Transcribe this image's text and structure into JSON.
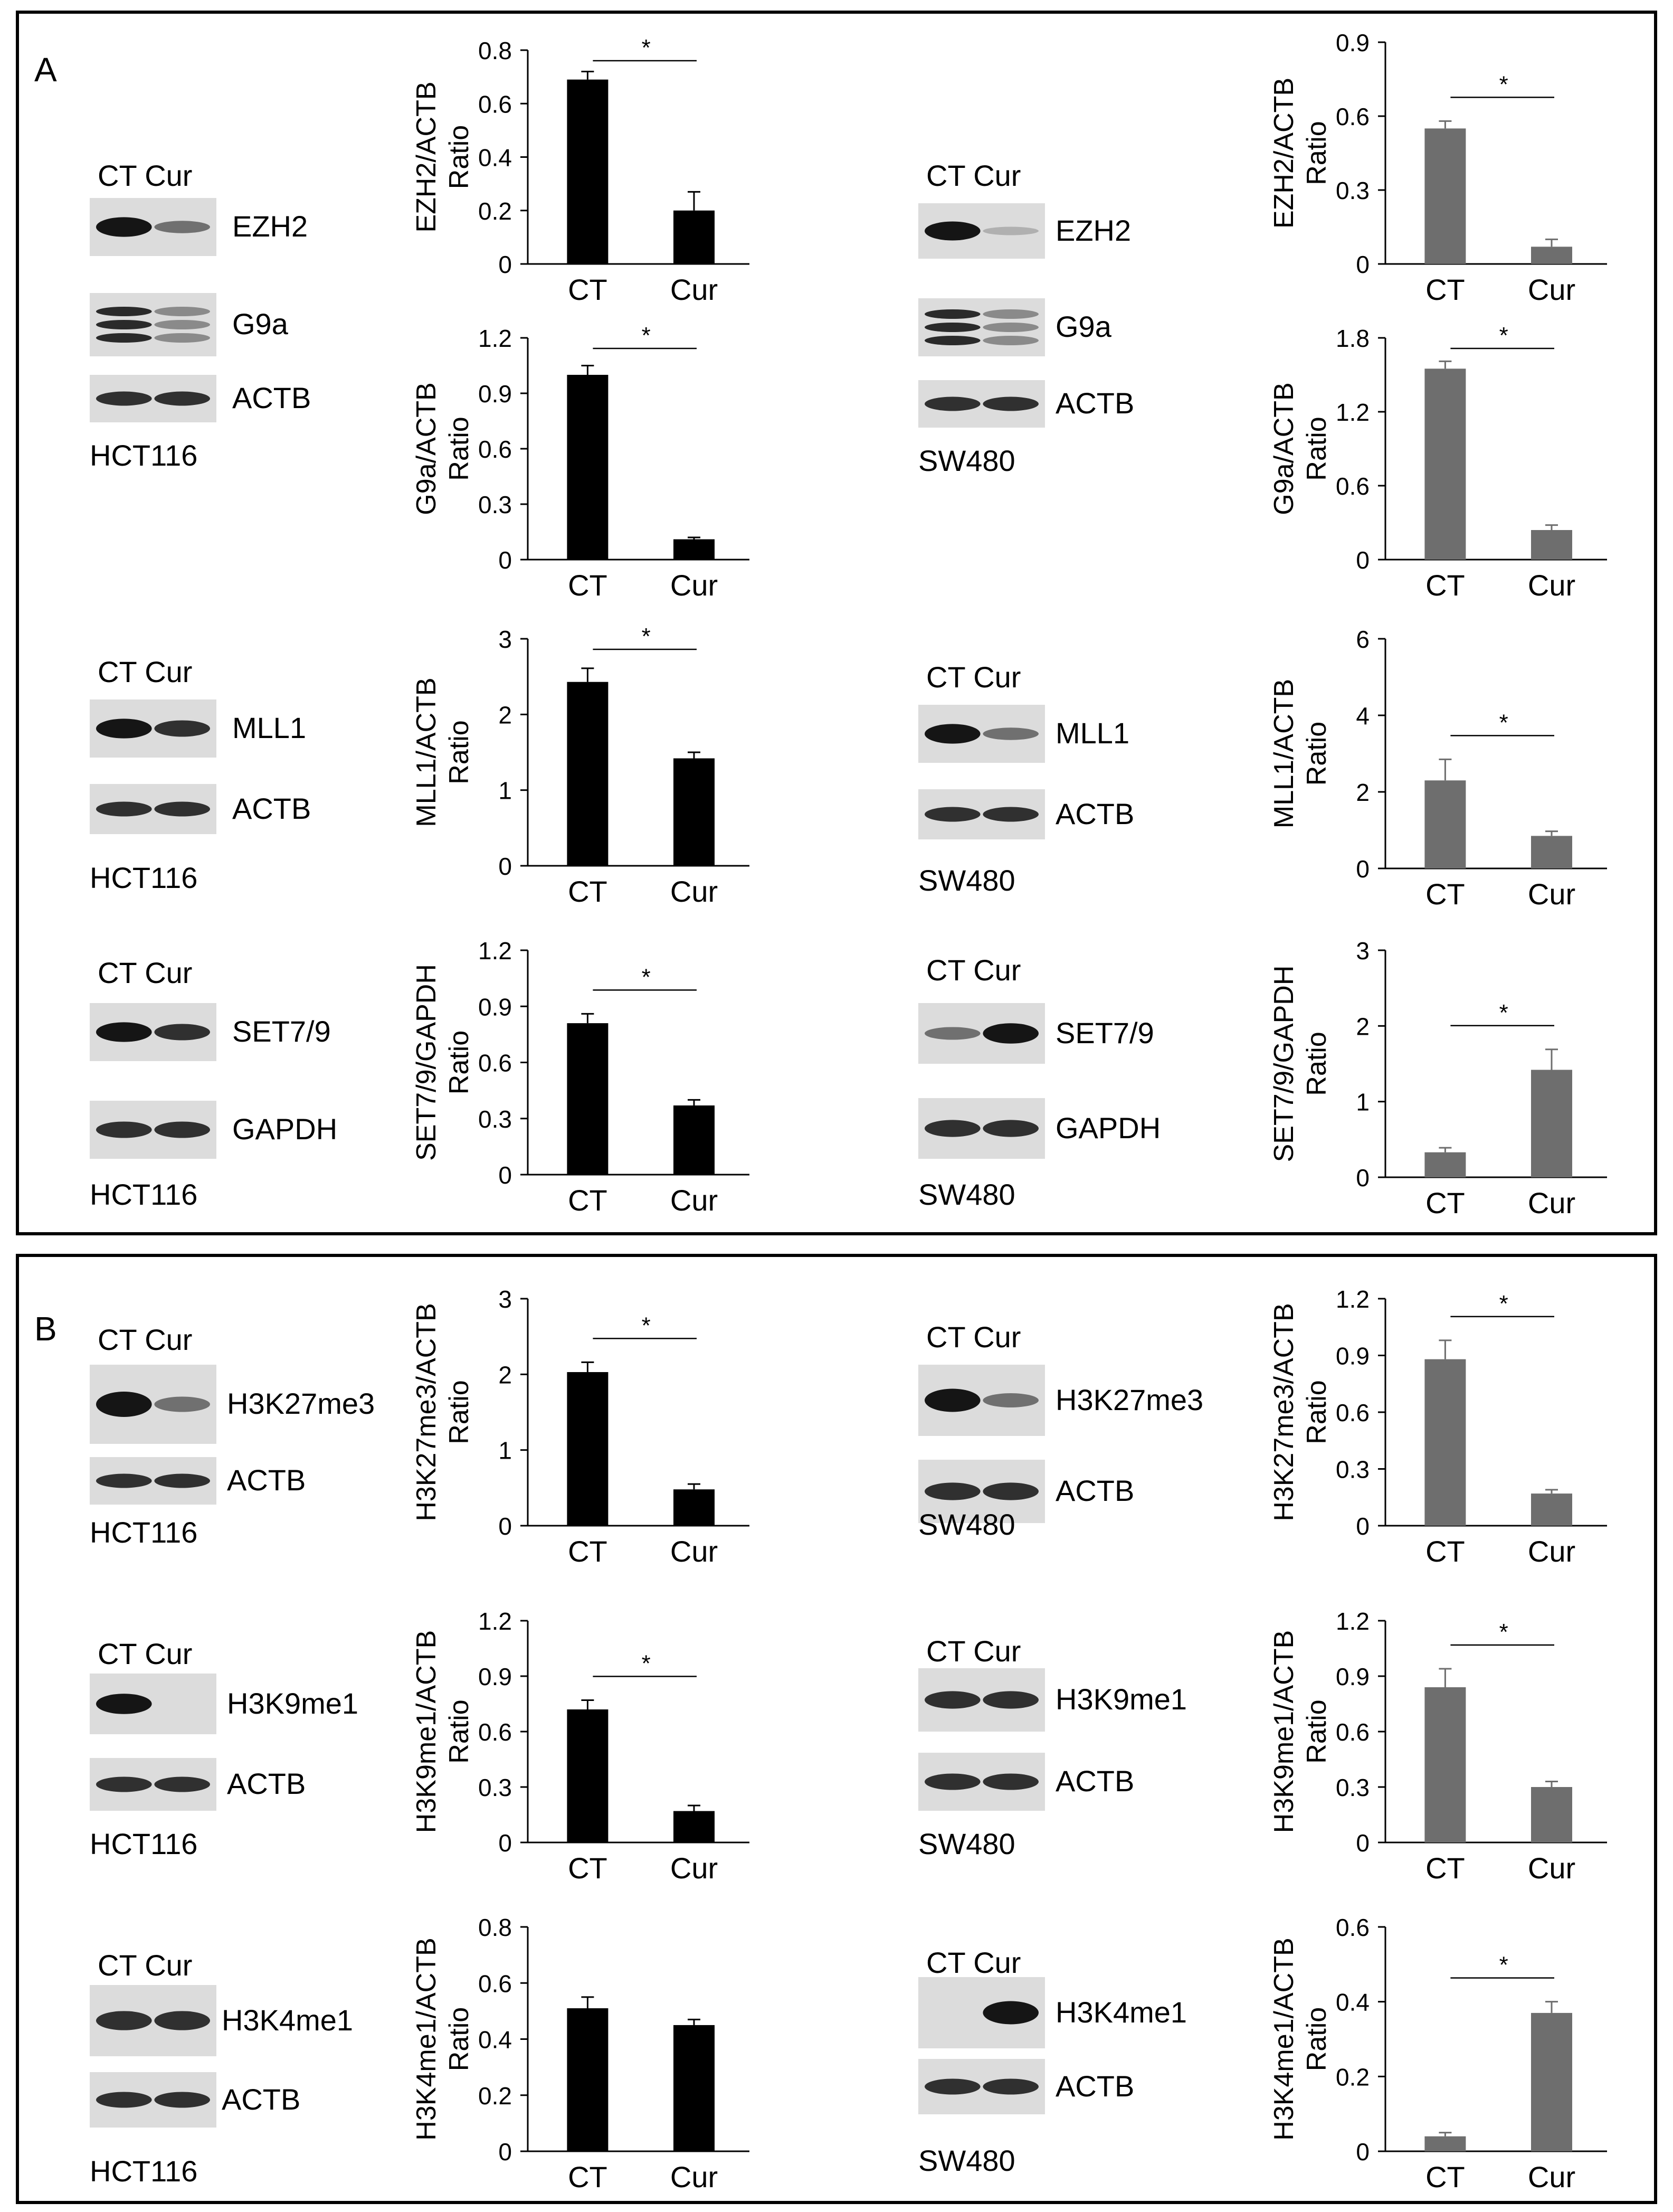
{
  "panels": [
    {
      "letter": "A"
    },
    {
      "letter": "B"
    }
  ],
  "lane_labels": "CT Cur",
  "blots": [
    {
      "id": "a1-hct",
      "cell_line": "HCT116",
      "proteins": [
        "EZH2",
        "G9a",
        "ACTB"
      ]
    },
    {
      "id": "a1-sw",
      "cell_line": "SW480",
      "proteins": [
        "EZH2",
        "G9a",
        "ACTB"
      ]
    },
    {
      "id": "a2-hct",
      "cell_line": "HCT116",
      "proteins": [
        "MLL1",
        "ACTB"
      ]
    },
    {
      "id": "a2-sw",
      "cell_line": "SW480",
      "proteins": [
        "MLL1",
        "ACTB"
      ]
    },
    {
      "id": "a3-hct",
      "cell_line": "HCT116",
      "proteins": [
        "SET7/9",
        "GAPDH"
      ]
    },
    {
      "id": "a3-sw",
      "cell_line": "SW480",
      "proteins": [
        "SET7/9",
        "GAPDH"
      ]
    },
    {
      "id": "b1-hct",
      "cell_line": "HCT116",
      "proteins": [
        "H3K27me3",
        "ACTB"
      ]
    },
    {
      "id": "b1-sw",
      "cell_line": "SW480",
      "proteins": [
        "H3K27me3",
        "ACTB"
      ]
    },
    {
      "id": "b2-hct",
      "cell_line": "HCT116",
      "proteins": [
        "H3K9me1",
        "ACTB"
      ]
    },
    {
      "id": "b2-sw",
      "cell_line": "SW480",
      "proteins": [
        "H3K9me1",
        "ACTB"
      ]
    },
    {
      "id": "b3-hct",
      "cell_line": "HCT116",
      "proteins": [
        "H3K4me1",
        "ACTB"
      ]
    },
    {
      "id": "b3-sw",
      "cell_line": "SW480",
      "proteins": [
        "H3K4me1",
        "ACTB"
      ]
    }
  ],
  "chart_data": [
    {
      "id": "ezh2-hct",
      "type": "bar",
      "categories": [
        "CT",
        "Cur"
      ],
      "values": [
        0.69,
        0.2
      ],
      "errors": [
        0.03,
        0.07
      ],
      "ylabel": "EZH2/ACTB\nRatio",
      "ylim": [
        0,
        0.8
      ],
      "yticks": [
        "0",
        "0.2",
        "0.4",
        "0.6",
        "0.8"
      ],
      "significant": true,
      "significance_label": "*",
      "bar_color": "#000000"
    },
    {
      "id": "ezh2-sw",
      "type": "bar",
      "categories": [
        "CT",
        "Cur"
      ],
      "values": [
        0.55,
        0.07
      ],
      "errors": [
        0.03,
        0.03
      ],
      "ylabel": "EZH2/ACTB\nRatio",
      "ylim": [
        0,
        0.9
      ],
      "yticks": [
        "0",
        "0.3",
        "0.6",
        "0.9"
      ],
      "significant": true,
      "significance_label": "*",
      "bar_color": "#6e6e6e"
    },
    {
      "id": "g9a-hct",
      "type": "bar",
      "categories": [
        "CT",
        "Cur"
      ],
      "values": [
        1.0,
        0.11
      ],
      "errors": [
        0.05,
        0.01
      ],
      "ylabel": "G9a/ACTB\nRatio",
      "ylim": [
        0,
        1.2
      ],
      "yticks": [
        "0",
        "0.3",
        "0.6",
        "0.9",
        "1.2"
      ],
      "significant": true,
      "significance_label": "*",
      "bar_color": "#000000"
    },
    {
      "id": "g9a-sw",
      "type": "bar",
      "categories": [
        "CT",
        "Cur"
      ],
      "values": [
        1.55,
        0.24
      ],
      "errors": [
        0.06,
        0.04
      ],
      "ylabel": "G9a/ACTB\nRatio",
      "ylim": [
        0,
        1.8
      ],
      "yticks": [
        "0",
        "0.6",
        "1.2",
        "1.8"
      ],
      "significant": true,
      "significance_label": "*",
      "bar_color": "#6e6e6e"
    },
    {
      "id": "mll1-hct",
      "type": "bar",
      "categories": [
        "CT",
        "Cur"
      ],
      "values": [
        2.43,
        1.42
      ],
      "errors": [
        0.18,
        0.08
      ],
      "ylabel": "MLL1/ACTB\nRatio",
      "ylim": [
        0,
        3
      ],
      "yticks": [
        "0",
        "1",
        "2",
        "3"
      ],
      "significant": true,
      "significance_label": "*",
      "bar_color": "#000000"
    },
    {
      "id": "mll1-sw",
      "type": "bar",
      "categories": [
        "CT",
        "Cur"
      ],
      "values": [
        2.3,
        0.85
      ],
      "errors": [
        0.55,
        0.12
      ],
      "ylabel": "MLL1/ACTB\nRatio",
      "ylim": [
        0,
        6
      ],
      "yticks": [
        "0",
        "2",
        "4",
        "6"
      ],
      "significant": true,
      "significance_label": "*",
      "bar_color": "#6e6e6e"
    },
    {
      "id": "set79-hct",
      "type": "bar",
      "categories": [
        "CT",
        "Cur"
      ],
      "values": [
        0.81,
        0.37
      ],
      "errors": [
        0.05,
        0.03
      ],
      "ylabel": "SET7/9/GAPDH\nRatio",
      "ylim": [
        0,
        1.2
      ],
      "yticks": [
        "0",
        "0.3",
        "0.6",
        "0.9",
        "1.2"
      ],
      "significant": true,
      "significance_label": "*",
      "bar_color": "#000000"
    },
    {
      "id": "set79-sw",
      "type": "bar",
      "categories": [
        "CT",
        "Cur"
      ],
      "values": [
        0.33,
        1.42
      ],
      "errors": [
        0.06,
        0.27
      ],
      "ylabel": "SET7/9/GAPDH\nRatio",
      "ylim": [
        0,
        3
      ],
      "yticks": [
        "0",
        "1",
        "2",
        "3"
      ],
      "significant": true,
      "significance_label": "*",
      "bar_color": "#6e6e6e"
    },
    {
      "id": "h3k27-hct",
      "type": "bar",
      "categories": [
        "CT",
        "Cur"
      ],
      "values": [
        2.03,
        0.48
      ],
      "errors": [
        0.13,
        0.07
      ],
      "ylabel": "H3K27me3/ACTB\nRatio",
      "ylim": [
        0,
        3
      ],
      "yticks": [
        "0",
        "1",
        "2",
        "3"
      ],
      "significant": true,
      "significance_label": "*",
      "bar_color": "#000000"
    },
    {
      "id": "h3k27-sw",
      "type": "bar",
      "categories": [
        "CT",
        "Cur"
      ],
      "values": [
        0.88,
        0.17
      ],
      "errors": [
        0.1,
        0.02
      ],
      "ylabel": "H3K27me3/ACTB\nRatio",
      "ylim": [
        0,
        1.2
      ],
      "yticks": [
        "0",
        "0.3",
        "0.6",
        "0.9",
        "1.2"
      ],
      "significant": true,
      "significance_label": "*",
      "bar_color": "#6e6e6e"
    },
    {
      "id": "h3k9-hct",
      "type": "bar",
      "categories": [
        "CT",
        "Cur"
      ],
      "values": [
        0.72,
        0.17
      ],
      "errors": [
        0.05,
        0.03
      ],
      "ylabel": "H3K9me1/ACTB\nRatio",
      "ylim": [
        0,
        1.2
      ],
      "yticks": [
        "0",
        "0.3",
        "0.6",
        "0.9",
        "1.2"
      ],
      "significant": true,
      "significance_label": "*",
      "bar_color": "#000000"
    },
    {
      "id": "h3k9-sw",
      "type": "bar",
      "categories": [
        "CT",
        "Cur"
      ],
      "values": [
        0.84,
        0.3
      ],
      "errors": [
        0.1,
        0.03
      ],
      "ylabel": "H3K9me1/ACTB\nRatio",
      "ylim": [
        0,
        1.2
      ],
      "yticks": [
        "0",
        "0.3",
        "0.6",
        "0.9",
        "1.2"
      ],
      "significant": true,
      "significance_label": "*",
      "bar_color": "#6e6e6e"
    },
    {
      "id": "h3k4-hct",
      "type": "bar",
      "categories": [
        "CT",
        "Cur"
      ],
      "values": [
        0.51,
        0.45
      ],
      "errors": [
        0.04,
        0.02
      ],
      "ylabel": "H3K4me1/ACTB\nRatio",
      "ylim": [
        0,
        0.8
      ],
      "yticks": [
        "0",
        "0.2",
        "0.4",
        "0.6",
        "0.8"
      ],
      "significant": false,
      "significance_label": "",
      "bar_color": "#000000"
    },
    {
      "id": "h3k4-sw",
      "type": "bar",
      "categories": [
        "CT",
        "Cur"
      ],
      "values": [
        0.04,
        0.37
      ],
      "errors": [
        0.01,
        0.03
      ],
      "ylabel": "H3K4me1/ACTB\nRatio",
      "ylim": [
        0,
        0.6
      ],
      "yticks": [
        "0",
        "0.2",
        "0.4",
        "0.6"
      ],
      "significant": true,
      "significance_label": "*",
      "bar_color": "#6e6e6e"
    }
  ]
}
